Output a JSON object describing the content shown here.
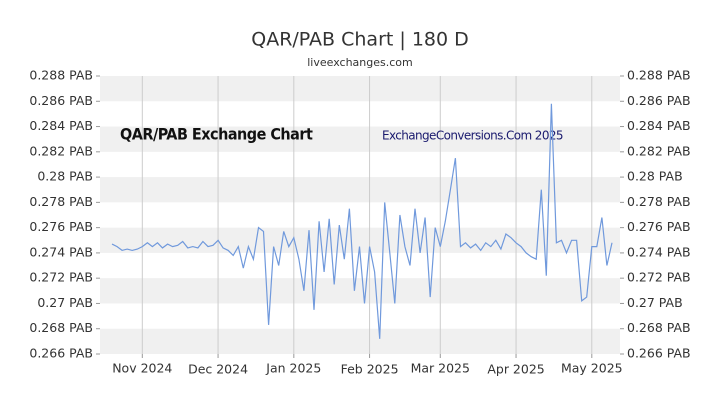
{
  "chart_data": {
    "type": "line",
    "title": "QAR/PAB Chart | 180 D",
    "subtitle": "liveexchanges.com",
    "annotations": [
      "QAR/PAB Exchange Chart",
      "ExchangeConversions.Com 2025"
    ],
    "xlim": [
      0,
      99
    ],
    "xticks": [
      {
        "value": 6,
        "label": "Nov 2024"
      },
      {
        "value": 21,
        "label": "Dec 2024"
      },
      {
        "value": 36,
        "label": "Jan 2025"
      },
      {
        "value": 51,
        "label": "Feb 2025"
      },
      {
        "value": 65,
        "label": "Mar 2025"
      },
      {
        "value": 80,
        "label": "Apr 2025"
      },
      {
        "value": 95,
        "label": "May 2025"
      }
    ],
    "ylim": [
      0.266,
      0.288
    ],
    "yticks": [
      {
        "value": 0.266,
        "label": "0.266 PAB"
      },
      {
        "value": 0.268,
        "label": "0.268 PAB"
      },
      {
        "value": 0.27,
        "label": "0.27 PAB"
      },
      {
        "value": 0.272,
        "label": "0.272 PAB"
      },
      {
        "value": 0.274,
        "label": "0.274 PAB"
      },
      {
        "value": 0.276,
        "label": "0.276 PAB"
      },
      {
        "value": 0.278,
        "label": "0.278 PAB"
      },
      {
        "value": 0.28,
        "label": "0.28 PAB"
      },
      {
        "value": 0.282,
        "label": "0.282 PAB"
      },
      {
        "value": 0.284,
        "label": "0.284 PAB"
      },
      {
        "value": 0.286,
        "label": "0.286 PAB"
      },
      {
        "value": 0.288,
        "label": "0.288 PAB"
      }
    ],
    "grid": true,
    "series": [
      {
        "name": "QAR/PAB",
        "color": "#7099dc",
        "values": [
          0.2747,
          0.2745,
          0.2742,
          0.2743,
          0.2742,
          0.2743,
          0.2745,
          0.2748,
          0.2745,
          0.2748,
          0.2744,
          0.2747,
          0.2745,
          0.2746,
          0.2749,
          0.2744,
          0.2745,
          0.2744,
          0.2749,
          0.2745,
          0.2746,
          0.275,
          0.2744,
          0.2742,
          0.2738,
          0.2745,
          0.2728,
          0.2745,
          0.2735,
          0.276,
          0.2757,
          0.2683,
          0.2745,
          0.273,
          0.2757,
          0.2745,
          0.2752,
          0.2735,
          0.271,
          0.2758,
          0.2695,
          0.2765,
          0.2725,
          0.2767,
          0.2715,
          0.2762,
          0.2735,
          0.2775,
          0.271,
          0.2745,
          0.27,
          0.2745,
          0.2725,
          0.2672,
          0.278,
          0.274,
          0.27,
          0.277,
          0.2745,
          0.273,
          0.2775,
          0.274,
          0.2768,
          0.2705,
          0.276,
          0.2745,
          0.2765,
          0.279,
          0.2815,
          0.2745,
          0.2748,
          0.2744,
          0.2747,
          0.2742,
          0.2748,
          0.2745,
          0.275,
          0.2743,
          0.2755,
          0.2752,
          0.2748,
          0.2745,
          0.274,
          0.2737,
          0.2735,
          0.279,
          0.2722,
          0.2858,
          0.2748,
          0.275,
          0.274,
          0.275,
          0.275,
          0.2702,
          0.2705,
          0.2745,
          0.2745,
          0.2768,
          0.273,
          0.2748
        ]
      }
    ]
  }
}
